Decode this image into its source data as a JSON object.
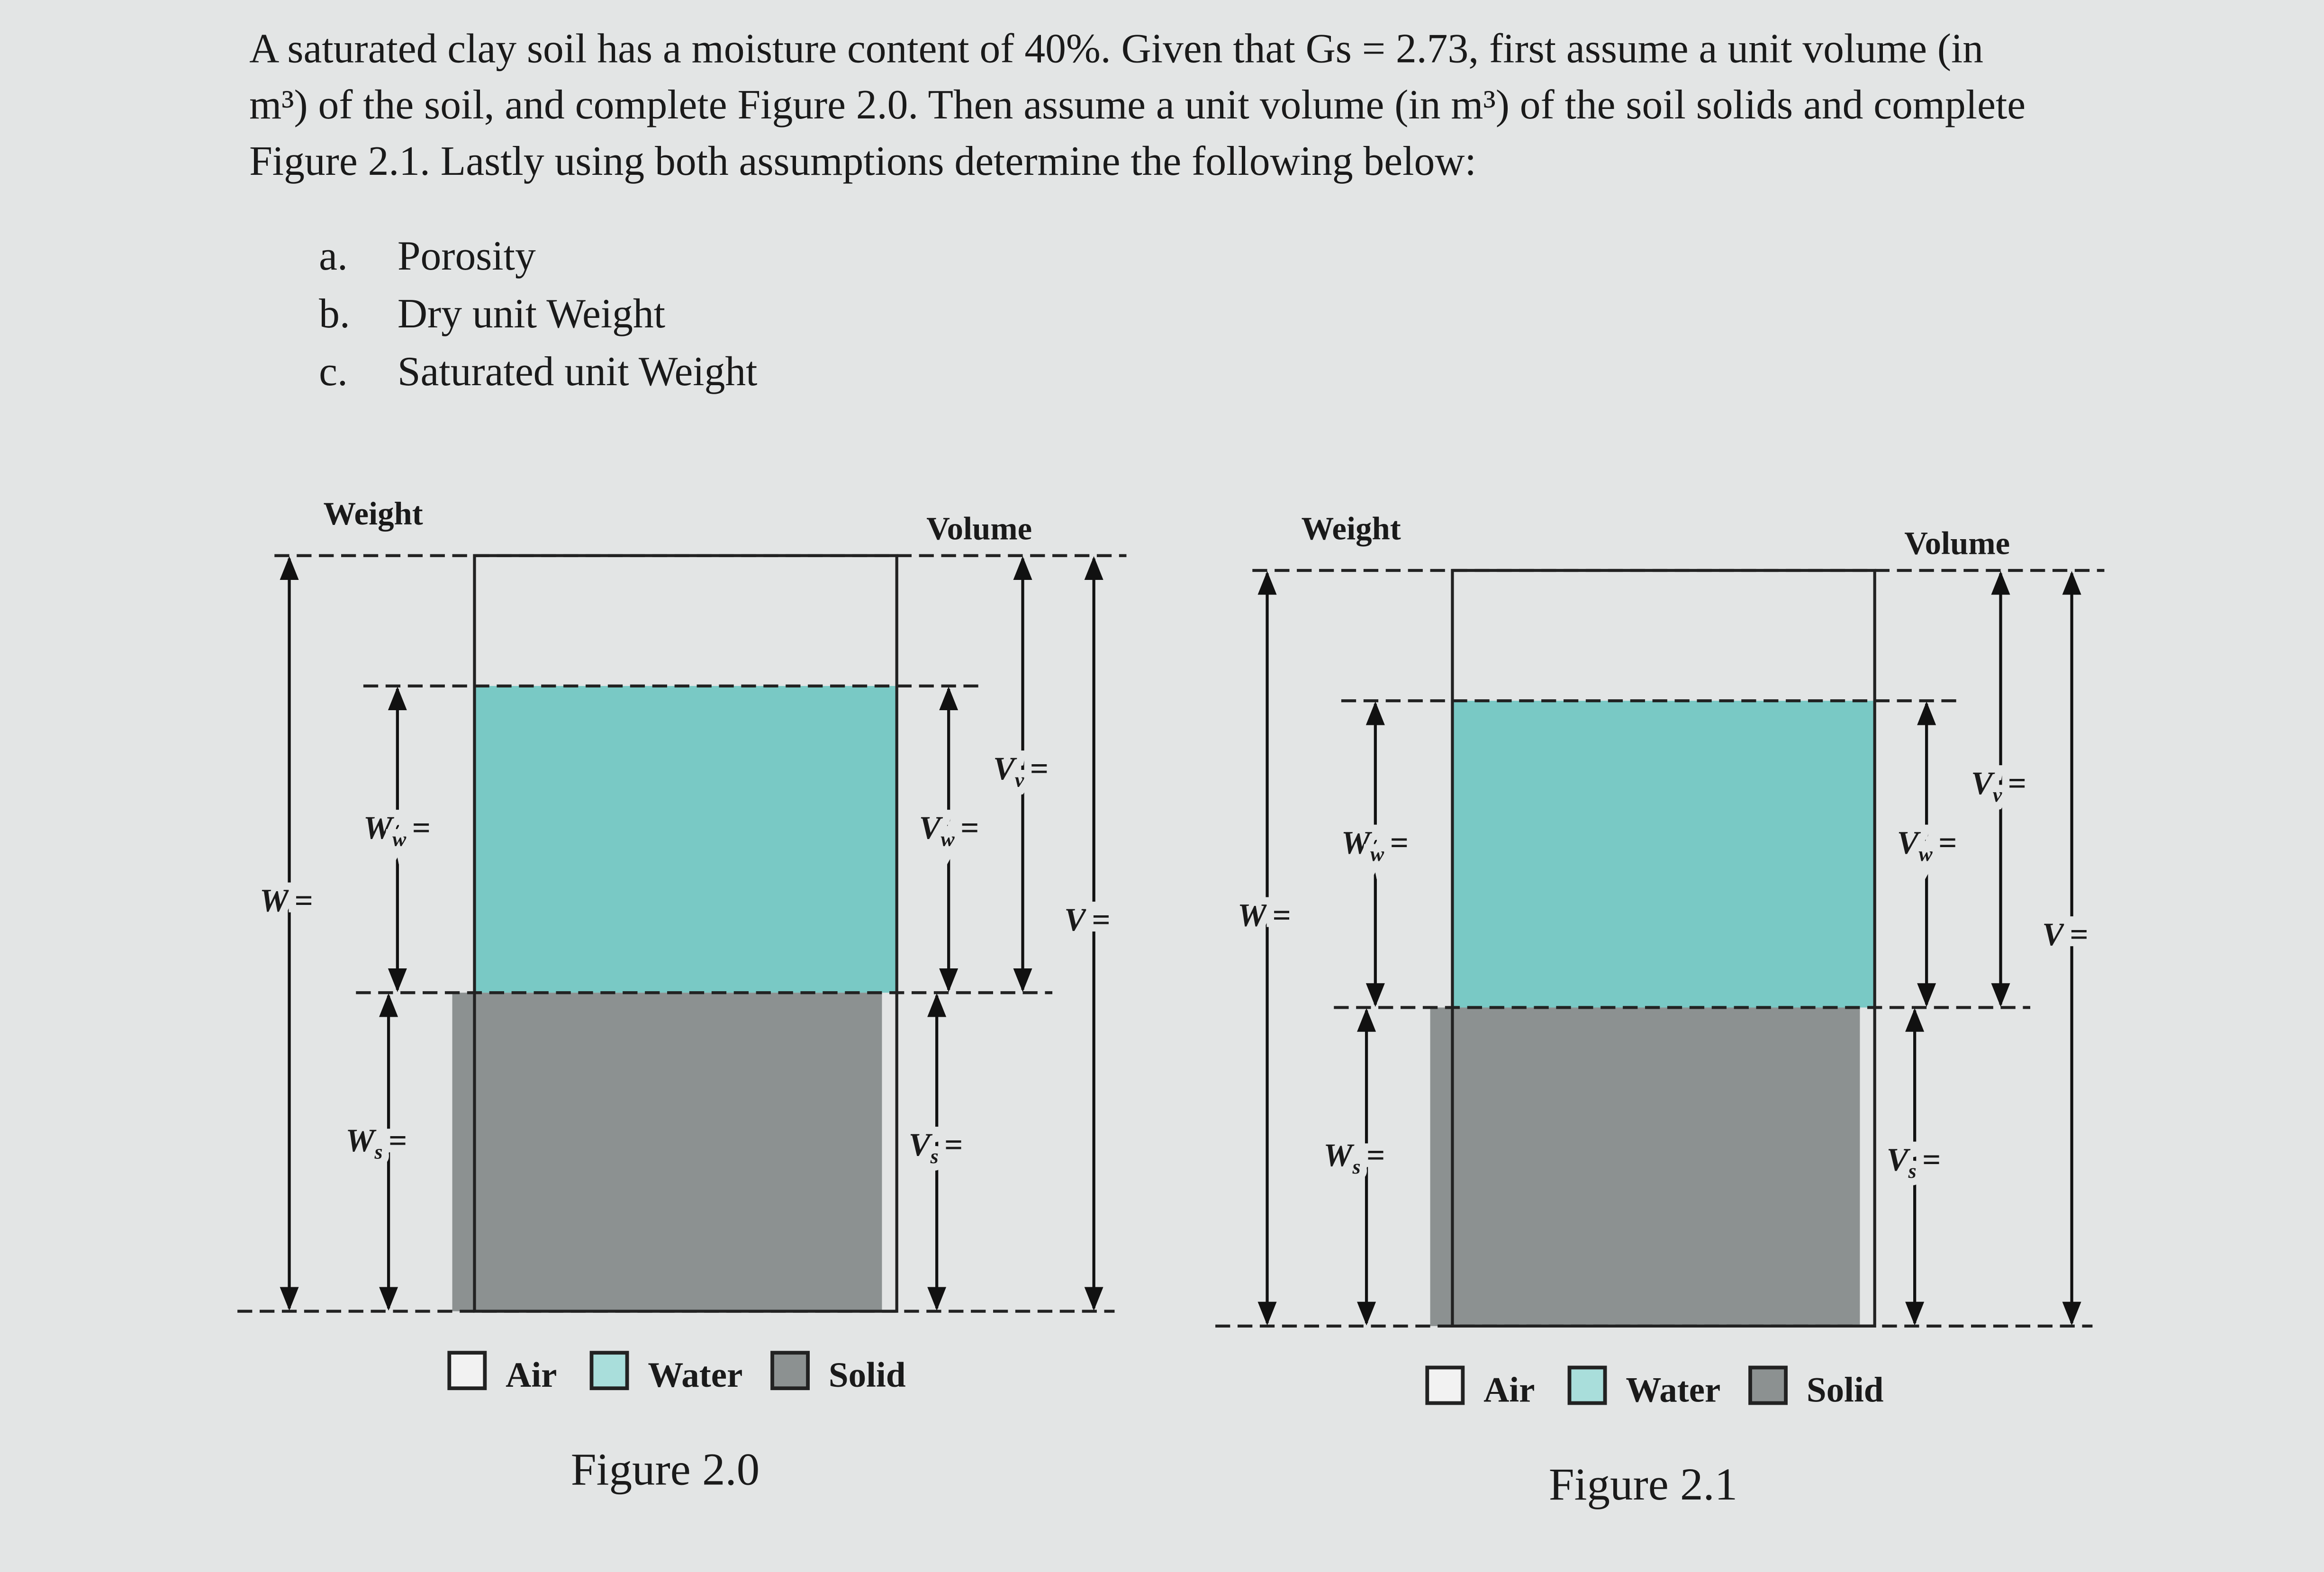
{
  "problem": {
    "lines": [
      "A saturated clay soil has a moisture content of 40%. Given that Gs = 2.73, first assume a unit volume (in",
      "m³) of the soil, and complete Figure 2.0. Then assume a unit volume (in m³) of the soil solids and complete",
      "Figure 2.1. Lastly using both assumptions determine the following below:"
    ],
    "items": [
      {
        "letter": "a.",
        "text": "Porosity"
      },
      {
        "letter": "b.",
        "text": "Dry unit Weight"
      },
      {
        "letter": "c.",
        "text": "Saturated unit Weight"
      }
    ]
  },
  "figures": [
    {
      "weight_heading": "Weight",
      "volume_heading": "Volume",
      "labels": {
        "W": {
          "symbol": "W",
          "sub": "",
          "sign": "="
        },
        "Ww": {
          "symbol": "W",
          "sub": "w",
          "sign": "="
        },
        "Ws": {
          "symbol": "W",
          "sub": "s",
          "sign": "="
        },
        "Vv": {
          "symbol": "V",
          "sub": "v",
          "sign": "="
        },
        "Vw": {
          "symbol": "V",
          "sub": "w",
          "sign": "="
        },
        "Vs": {
          "symbol": "V",
          "sub": "s",
          "sign": "="
        },
        "V": {
          "symbol": "V",
          "sub": "",
          "sign": "="
        }
      },
      "legend": [
        "Air",
        "Water",
        "Solid"
      ],
      "caption": "Figure 2.0"
    },
    {
      "weight_heading": "Weight",
      "volume_heading": "Volume",
      "labels": {
        "W": {
          "symbol": "W",
          "sub": "",
          "sign": "="
        },
        "Ww": {
          "symbol": "W",
          "sub": "w",
          "sign": "="
        },
        "Ws": {
          "symbol": "W",
          "sub": "s",
          "sign": "="
        },
        "Vv": {
          "symbol": "V",
          "sub": "v",
          "sign": "="
        },
        "Vw": {
          "symbol": "V",
          "sub": "w",
          "sign": "="
        },
        "Vs": {
          "symbol": "V",
          "sub": "s",
          "sign": "="
        },
        "V": {
          "symbol": "V",
          "sub": "",
          "sign": "="
        }
      },
      "legend": [
        "Air",
        "Water",
        "Solid"
      ],
      "caption": "Figure 2.1"
    }
  ]
}
